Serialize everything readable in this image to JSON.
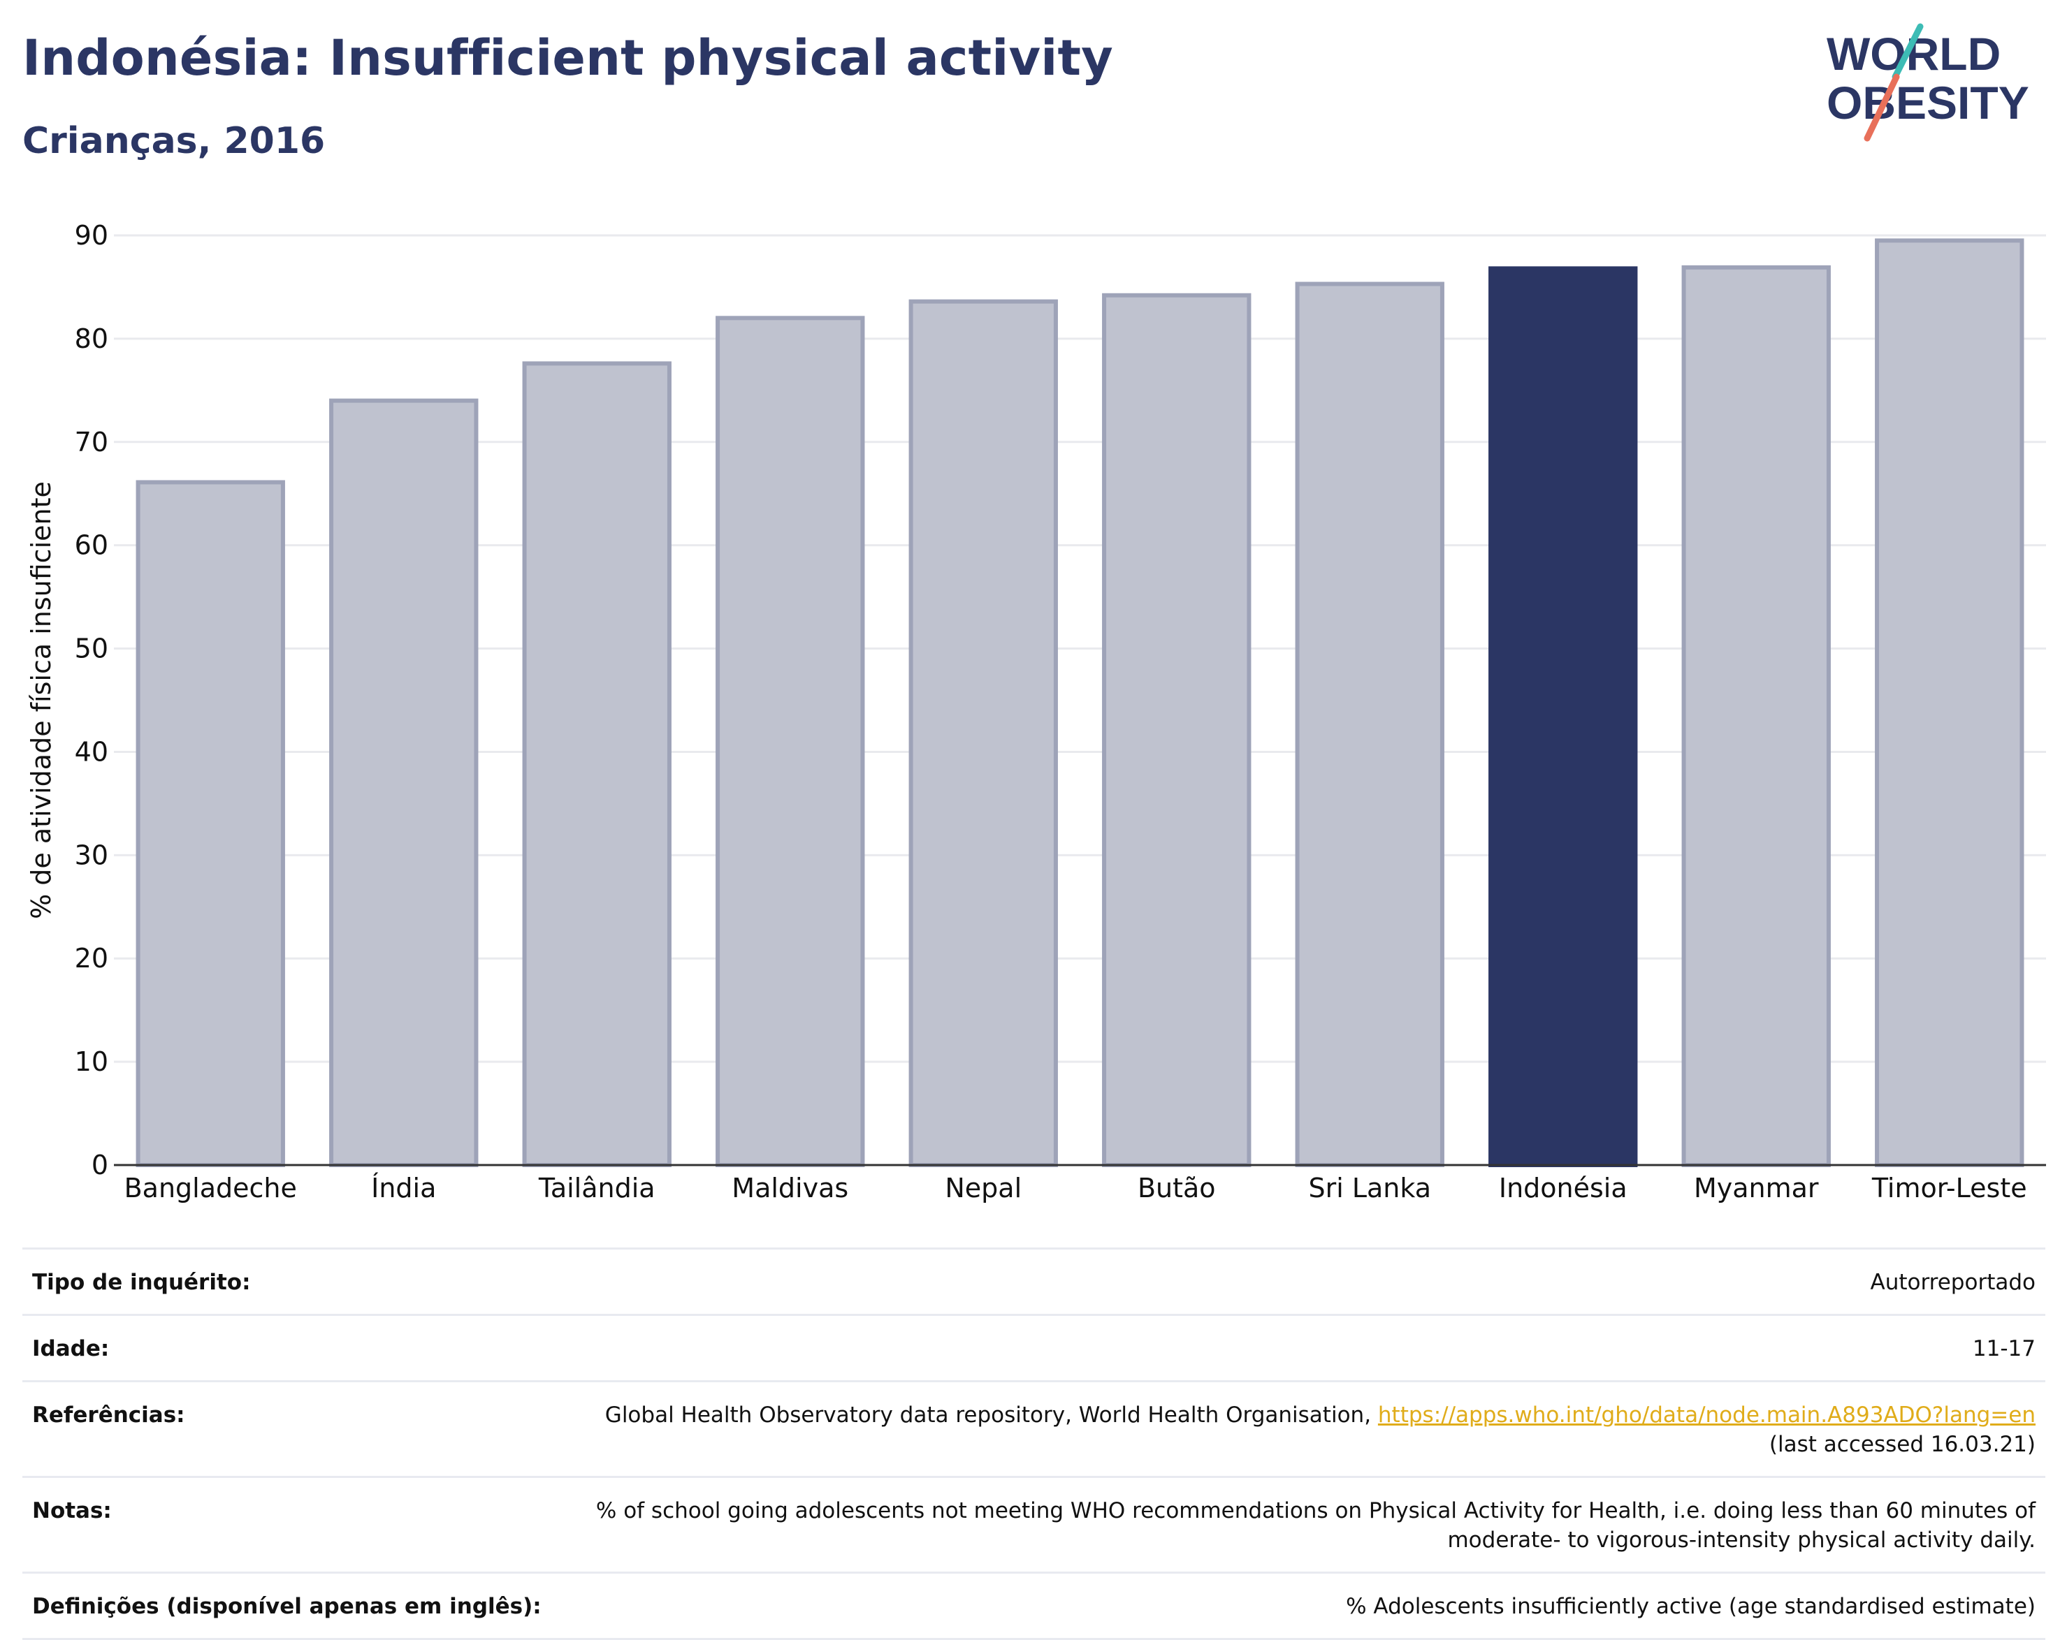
{
  "header": {
    "title": "Indonésia: Insufficient physical activity",
    "subtitle": "Crianças, 2016",
    "logo_line1": "WORLD",
    "logo_line2": "OBESITY"
  },
  "colors": {
    "highlight": "#2b3664",
    "bar": "#bfc2cf",
    "bar_border": "#9ea3b8",
    "title": "#2b3664",
    "link": "#e0ac1a",
    "logo_teal": "#3dbcb5",
    "logo_coral": "#e8705a"
  },
  "chart_data": {
    "type": "bar",
    "categories": [
      "Bangladeche",
      "Índia",
      "Tailândia",
      "Maldivas",
      "Nepal",
      "Butão",
      "Sri Lanka",
      "Indonésia",
      "Myanmar",
      "Timor-Leste"
    ],
    "values": [
      66.1,
      74.0,
      77.6,
      82.0,
      83.6,
      84.2,
      85.3,
      86.8,
      86.9,
      89.5
    ],
    "highlight": "Indonésia",
    "ylabel": "% de atividade física insuficiente",
    "ylim": [
      0,
      90
    ],
    "yticks": [
      "0",
      "10",
      "20",
      "30",
      "40",
      "50",
      "60",
      "70",
      "80",
      "90"
    ],
    "grid": true
  },
  "meta": {
    "survey_key": "Tipo de inquérito:",
    "survey_val": "Autorreportado",
    "age_key": "Idade:",
    "age_val": "11-17",
    "ref_key": "Referências:",
    "ref_text": "Global Health Observatory data repository, World Health Organisation, ",
    "ref_link": "https://apps.who.int/gho/data/node.main.A893ADO?lang=en",
    "ref_accessed": "(last accessed 16.03.21)",
    "notes_key": "Notas:",
    "notes_val": "% of school going adolescents not meeting WHO recommendations on Physical Activity for Health, i.e. doing less than 60 minutes of moderate- to vigorous-intensity physical activity daily.",
    "def_key": "Definições (disponível apenas em inglês):",
    "def_val": "% Adolescents insufficiently active (age standardised estimate)"
  }
}
